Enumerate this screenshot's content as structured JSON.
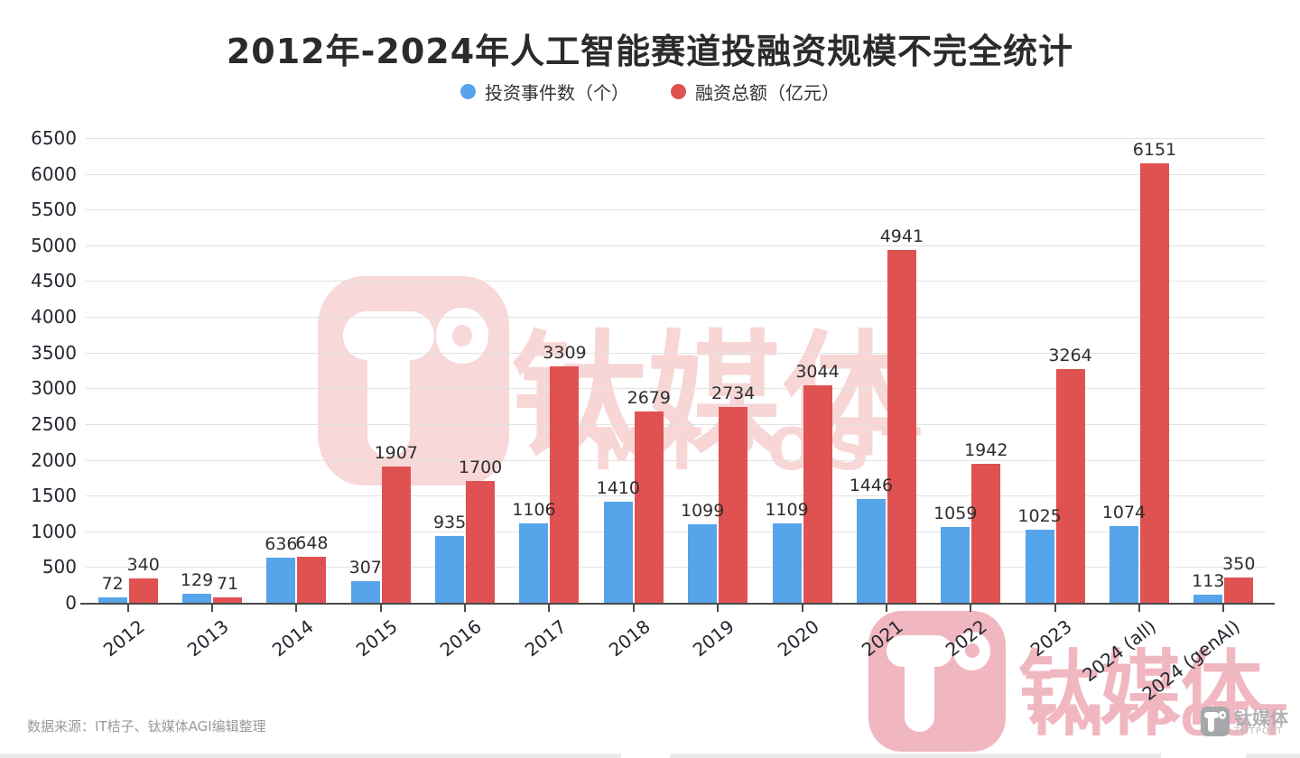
{
  "header": {
    "title": "2012年-2024年人工智能赛道投融资规模不完全统计"
  },
  "legend": {
    "items": [
      {
        "label": "投资事件数（个）",
        "color": "#56a5ea"
      },
      {
        "label": "融资总额（亿元）",
        "color": "#e05252"
      }
    ]
  },
  "footer": {
    "source": "数据来源：IT桔子、钛媒体AGI编辑整理"
  },
  "watermark": {
    "brand_cn": "钛媒体",
    "brand_en": "TMTPOST"
  },
  "colors": {
    "bar_blue": "#56a5ea",
    "bar_red": "#e05252",
    "watermark_center_pink": "#f8d8d8",
    "watermark_corner_pink": "#f1b7c0",
    "watermark_gray": "#a5a7ab"
  },
  "chart_data": {
    "type": "bar",
    "title": "2012年-2024年人工智能赛道投融资规模不完全统计",
    "categories": [
      "2012",
      "2013",
      "2014",
      "2015",
      "2016",
      "2017",
      "2018",
      "2019",
      "2020",
      "2021",
      "2022",
      "2023",
      "2024 (all)",
      "2024 (genAI)"
    ],
    "series": [
      {
        "name": "投资事件数（个）",
        "color": "#56a5ea",
        "values": [
          72,
          129,
          636,
          307,
          935,
          1106,
          1410,
          1099,
          1109,
          1446,
          1059,
          1025,
          1074,
          113
        ]
      },
      {
        "name": "融资总额（亿元）",
        "color": "#e05252",
        "values": [
          340,
          71,
          648,
          1907,
          1700,
          3309,
          2679,
          2734,
          3044,
          4941,
          1942,
          3264,
          6151,
          350
        ]
      }
    ],
    "xlabel": "",
    "ylabel": "",
    "ylim": [
      0,
      6500
    ],
    "ytick_step": 500,
    "grid": true,
    "legend_position": "top",
    "value_labels": true
  }
}
